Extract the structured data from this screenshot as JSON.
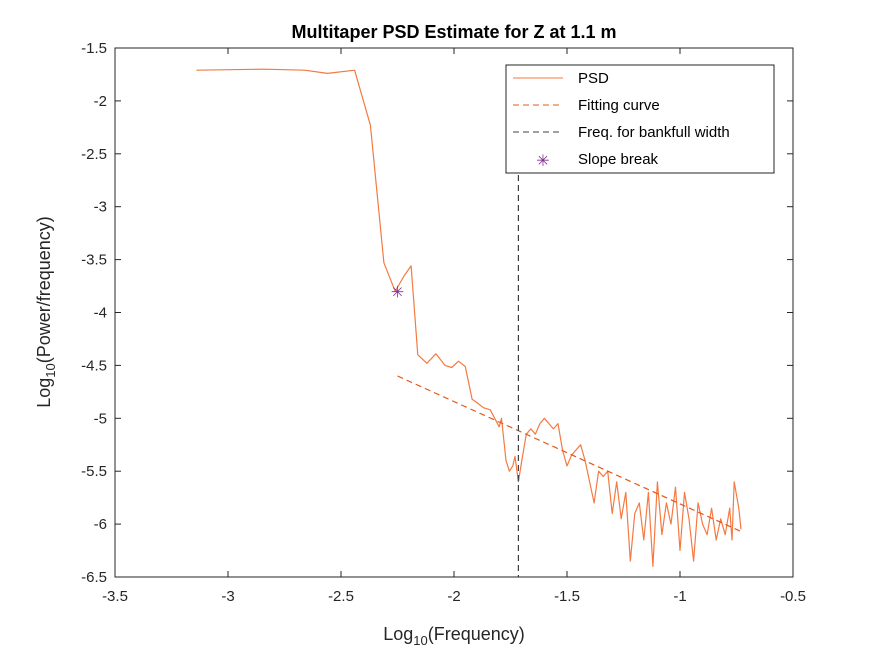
{
  "chart_data": {
    "type": "line",
    "title": "Multitaper PSD Estimate for Z at 1.1 m",
    "xlabel": {
      "prefix": "Log",
      "sub": "10",
      "suffix": "(Frequency)"
    },
    "ylabel": {
      "prefix": "Log",
      "sub": "10",
      "suffix": "(Power/frequency)"
    },
    "xlim": [
      -3.5,
      -0.5
    ],
    "ylim": [
      -6.5,
      -1.5
    ],
    "xticks": [
      -3.5,
      -3,
      -2.5,
      -2,
      -1.5,
      -1,
      -0.5
    ],
    "xtick_labels": [
      "-3.5",
      "-3",
      "-2.5",
      "-2",
      "-1.5",
      "-1",
      "-0.5"
    ],
    "yticks": [
      -6.5,
      -6,
      -5.5,
      -5,
      -4.5,
      -4,
      -3.5,
      -3,
      -2.5,
      -2,
      -1.5
    ],
    "ytick_labels": [
      "-6.5",
      "-6",
      "-5.5",
      "-5",
      "-4.5",
      "-4",
      "-3.5",
      "-3",
      "-2.5",
      "-2",
      "-1.5"
    ],
    "grid": false,
    "legend_position": "top-right",
    "colors": {
      "psd": "#f47a42",
      "fit": "#e2581c",
      "bankfull": "#404040",
      "slope_break": "#7e2f8e",
      "axes": "#262626"
    },
    "series": [
      {
        "name": "PSD",
        "style": "solid",
        "points": [
          [
            -3.14,
            -1.71
          ],
          [
            -2.84,
            -1.7
          ],
          [
            -2.66,
            -1.71
          ],
          [
            -2.56,
            -1.74
          ],
          [
            -2.44,
            -1.71
          ],
          [
            -2.37,
            -2.23
          ],
          [
            -2.31,
            -3.53
          ],
          [
            -2.26,
            -3.8
          ],
          [
            -2.22,
            -3.65
          ],
          [
            -2.19,
            -3.56
          ],
          [
            -2.16,
            -4.4
          ],
          [
            -2.12,
            -4.48
          ],
          [
            -2.08,
            -4.39
          ],
          [
            -2.04,
            -4.5
          ],
          [
            -2.01,
            -4.52
          ],
          [
            -1.98,
            -4.46
          ],
          [
            -1.95,
            -4.51
          ],
          [
            -1.92,
            -4.82
          ],
          [
            -1.9,
            -4.85
          ],
          [
            -1.87,
            -4.9
          ],
          [
            -1.84,
            -4.92
          ],
          [
            -1.82,
            -5.0
          ],
          [
            -1.8,
            -5.08
          ],
          [
            -1.79,
            -5.0
          ],
          [
            -1.77,
            -5.4
          ],
          [
            -1.755,
            -5.5
          ],
          [
            -1.74,
            -5.45
          ],
          [
            -1.73,
            -5.36
          ],
          [
            -1.715,
            -5.6
          ],
          [
            -1.7,
            -5.4
          ],
          [
            -1.68,
            -5.15
          ],
          [
            -1.66,
            -5.1
          ],
          [
            -1.64,
            -5.15
          ],
          [
            -1.62,
            -5.05
          ],
          [
            -1.6,
            -5.0
          ],
          [
            -1.58,
            -5.05
          ],
          [
            -1.56,
            -5.1
          ],
          [
            -1.54,
            -5.05
          ],
          [
            -1.52,
            -5.3
          ],
          [
            -1.5,
            -5.45
          ],
          [
            -1.48,
            -5.35
          ],
          [
            -1.46,
            -5.3
          ],
          [
            -1.44,
            -5.25
          ],
          [
            -1.42,
            -5.4
          ],
          [
            -1.4,
            -5.6
          ],
          [
            -1.38,
            -5.8
          ],
          [
            -1.36,
            -5.5
          ],
          [
            -1.34,
            -5.55
          ],
          [
            -1.32,
            -5.5
          ],
          [
            -1.3,
            -5.9
          ],
          [
            -1.28,
            -5.6
          ],
          [
            -1.26,
            -5.95
          ],
          [
            -1.24,
            -5.7
          ],
          [
            -1.22,
            -6.35
          ],
          [
            -1.2,
            -5.9
          ],
          [
            -1.18,
            -5.8
          ],
          [
            -1.16,
            -6.15
          ],
          [
            -1.14,
            -5.7
          ],
          [
            -1.12,
            -6.4
          ],
          [
            -1.1,
            -5.6
          ],
          [
            -1.08,
            -6.1
          ],
          [
            -1.06,
            -5.8
          ],
          [
            -1.04,
            -6.0
          ],
          [
            -1.02,
            -5.65
          ],
          [
            -1.0,
            -6.25
          ],
          [
            -0.98,
            -5.7
          ],
          [
            -0.96,
            -5.95
          ],
          [
            -0.94,
            -6.35
          ],
          [
            -0.92,
            -5.8
          ],
          [
            -0.9,
            -6.0
          ],
          [
            -0.88,
            -6.1
          ],
          [
            -0.86,
            -5.85
          ],
          [
            -0.84,
            -6.15
          ],
          [
            -0.82,
            -5.95
          ],
          [
            -0.8,
            -6.1
          ],
          [
            -0.78,
            -5.85
          ],
          [
            -0.77,
            -6.15
          ],
          [
            -0.76,
            -5.6
          ],
          [
            -0.74,
            -5.85
          ],
          [
            -0.73,
            -6.05
          ]
        ]
      },
      {
        "name": "Fitting curve",
        "style": "dashed",
        "points": [
          [
            -2.25,
            -4.6
          ],
          [
            -0.73,
            -6.07
          ]
        ]
      },
      {
        "name": "Freq. for bankfull width",
        "style": "dashed",
        "points": [
          [
            -1.715,
            -1.85
          ],
          [
            -1.715,
            -6.5
          ]
        ]
      },
      {
        "name": "Slope break",
        "style": "marker",
        "points": [
          [
            -2.25,
            -3.8
          ]
        ]
      }
    ]
  }
}
